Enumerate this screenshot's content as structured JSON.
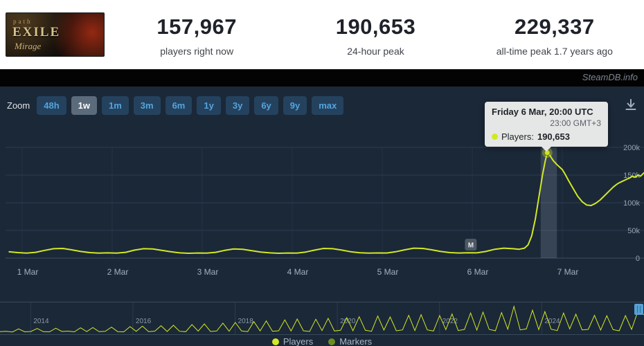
{
  "header": {
    "capsule": {
      "line1": "path",
      "line2": "EXILE",
      "line3": "Mirage"
    },
    "stats": [
      {
        "value": "157,967",
        "label": "players right now"
      },
      {
        "value": "190,653",
        "label": "24-hour peak"
      },
      {
        "value": "229,337",
        "label": "all-time peak 1.7 years ago"
      }
    ]
  },
  "brandbar": {
    "text": "SteamDB.info"
  },
  "toolbar": {
    "zoom_label": "Zoom",
    "buttons": [
      {
        "label": "48h",
        "active": false
      },
      {
        "label": "1w",
        "active": true
      },
      {
        "label": "1m",
        "active": false
      },
      {
        "label": "3m",
        "active": false
      },
      {
        "label": "6m",
        "active": false
      },
      {
        "label": "1y",
        "active": false
      },
      {
        "label": "3y",
        "active": false
      },
      {
        "label": "6y",
        "active": false
      },
      {
        "label": "9y",
        "active": false
      },
      {
        "label": "max",
        "active": false
      }
    ],
    "download_icon": "download-chart"
  },
  "tooltip": {
    "title": "Friday 6 Mar, 20:00 UTC",
    "subtitle": "23:00 GMT+3",
    "series_label": "Players:",
    "series_value": "190,653",
    "dot_color": "#d2e823"
  },
  "legend": {
    "items": [
      {
        "label": "Players",
        "color": "#d2e823"
      },
      {
        "label": "Markers",
        "color": "#6b8e23"
      }
    ]
  },
  "colors": {
    "line": "#d2e823",
    "background": "#1b2838",
    "accent_blue": "#54a4dc"
  },
  "chart_data": [
    {
      "type": "line",
      "role": "main",
      "xlabel": "",
      "ylabel": "Players",
      "ylim": [
        0,
        225000
      ],
      "grid": true,
      "legend_position": "bottom",
      "x_ticks": [
        {
          "v": 1,
          "label": "1 Mar"
        },
        {
          "v": 2,
          "label": "2 Mar"
        },
        {
          "v": 3,
          "label": "3 Mar"
        },
        {
          "v": 4,
          "label": "4 Mar"
        },
        {
          "v": 5,
          "label": "5 Mar"
        },
        {
          "v": 6,
          "label": "6 Mar"
        },
        {
          "v": 7,
          "label": "7 Mar"
        }
      ],
      "y_ticks": [
        {
          "v": 0,
          "label": "0"
        },
        {
          "v": 50000,
          "label": "50k"
        },
        {
          "v": 100000,
          "label": "100k"
        },
        {
          "v": 150000,
          "label": "150k"
        },
        {
          "v": 200000,
          "label": "200k"
        }
      ],
      "marker": {
        "x": 6.833,
        "y": 190653
      },
      "band": {
        "x1": 6.76,
        "x2": 6.94
      },
      "milestone": {
        "x": 5.98,
        "y": 25000,
        "label": "M"
      },
      "series": [
        {
          "name": "Players",
          "color": "#d2e823",
          "points": [
            [
              0.85,
              11500
            ],
            [
              0.95,
              10000
            ],
            [
              1.05,
              9000
            ],
            [
              1.15,
              10500
            ],
            [
              1.25,
              14000
            ],
            [
              1.35,
              17000
            ],
            [
              1.45,
              17500
            ],
            [
              1.55,
              15000
            ],
            [
              1.65,
              12000
            ],
            [
              1.75,
              10000
            ],
            [
              1.85,
              9000
            ],
            [
              1.95,
              9500
            ],
            [
              2.05,
              9000
            ],
            [
              2.15,
              10500
            ],
            [
              2.25,
              14500
            ],
            [
              2.35,
              17000
            ],
            [
              2.45,
              16500
            ],
            [
              2.55,
              14000
            ],
            [
              2.65,
              11500
            ],
            [
              2.75,
              9500
            ],
            [
              2.85,
              8800
            ],
            [
              2.95,
              9200
            ],
            [
              3.05,
              9000
            ],
            [
              3.15,
              10500
            ],
            [
              3.25,
              14000
            ],
            [
              3.35,
              16500
            ],
            [
              3.45,
              16000
            ],
            [
              3.55,
              13500
            ],
            [
              3.65,
              11000
            ],
            [
              3.75,
              9500
            ],
            [
              3.85,
              8800
            ],
            [
              3.95,
              9200
            ],
            [
              4.05,
              9000
            ],
            [
              4.15,
              11000
            ],
            [
              4.25,
              14500
            ],
            [
              4.35,
              17500
            ],
            [
              4.45,
              17000
            ],
            [
              4.55,
              14500
            ],
            [
              4.65,
              11500
            ],
            [
              4.75,
              9800
            ],
            [
              4.85,
              9000
            ],
            [
              4.95,
              9400
            ],
            [
              5.05,
              9200
            ],
            [
              5.15,
              11500
            ],
            [
              5.25,
              15000
            ],
            [
              5.35,
              18000
            ],
            [
              5.45,
              17500
            ],
            [
              5.55,
              15000
            ],
            [
              5.65,
              12000
            ],
            [
              5.75,
              10000
            ],
            [
              5.85,
              9200
            ],
            [
              5.95,
              9600
            ],
            [
              6.05,
              9500
            ],
            [
              6.15,
              12000
            ],
            [
              6.25,
              16000
            ],
            [
              6.35,
              18000
            ],
            [
              6.45,
              17000
            ],
            [
              6.52,
              16000
            ],
            [
              6.58,
              18000
            ],
            [
              6.62,
              24000
            ],
            [
              6.66,
              40000
            ],
            [
              6.7,
              70000
            ],
            [
              6.74,
              110000
            ],
            [
              6.78,
              150000
            ],
            [
              6.81,
              175000
            ],
            [
              6.833,
              190653
            ],
            [
              6.86,
              186000
            ],
            [
              6.9,
              176000
            ],
            [
              6.94,
              169000
            ],
            [
              6.98,
              163000
            ],
            [
              7.0,
              160000
            ],
            [
              7.03,
              152000
            ],
            [
              7.07,
              140000
            ],
            [
              7.12,
              126000
            ],
            [
              7.17,
              112000
            ],
            [
              7.22,
              102000
            ],
            [
              7.27,
              96000
            ],
            [
              7.32,
              95000
            ],
            [
              7.37,
              99000
            ],
            [
              7.42,
              105000
            ],
            [
              7.47,
              113000
            ],
            [
              7.52,
              121000
            ],
            [
              7.57,
              129000
            ],
            [
              7.62,
              135000
            ],
            [
              7.67,
              139000
            ],
            [
              7.71,
              142000
            ],
            [
              7.75,
              145000
            ],
            [
              7.78,
              148000
            ],
            [
              7.81,
              146000
            ],
            [
              7.84,
              150000
            ],
            [
              7.87,
              148000
            ],
            [
              7.9,
              153000
            ],
            [
              7.92,
              156000
            ]
          ]
        }
      ]
    },
    {
      "type": "line",
      "role": "navigator",
      "x_start": 2013.4,
      "x_end": 2026.0,
      "scale_max": 240,
      "year_ticks": [
        2014,
        2016,
        2018,
        2020,
        2022,
        2024
      ],
      "values": [
        10,
        14,
        8,
        34,
        9,
        12,
        38,
        10,
        9,
        40,
        12,
        15,
        9,
        44,
        11,
        46,
        10,
        13,
        50,
        11,
        9,
        54,
        13,
        58,
        11,
        15,
        62,
        12,
        66,
        14,
        10,
        72,
        15,
        78,
        12,
        16,
        84,
        14,
        90,
        16,
        11,
        98,
        17,
        104,
        14,
        18,
        112,
        16,
        120,
        18,
        12,
        118,
        20,
        126,
        16,
        22,
        132,
        18,
        140,
        22,
        14,
        146,
        24,
        138,
        18,
        26,
        152,
        20,
        158,
        26,
        16,
        150,
        28,
        164,
        20,
        30,
        172,
        24,
        180,
        30,
        18,
        176,
        32,
        229,
        26,
        34,
        196,
        28,
        184,
        32,
        20,
        172,
        34,
        162,
        26,
        30,
        152,
        24,
        148,
        28,
        18,
        150,
        30,
        186,
        158
      ]
    }
  ]
}
